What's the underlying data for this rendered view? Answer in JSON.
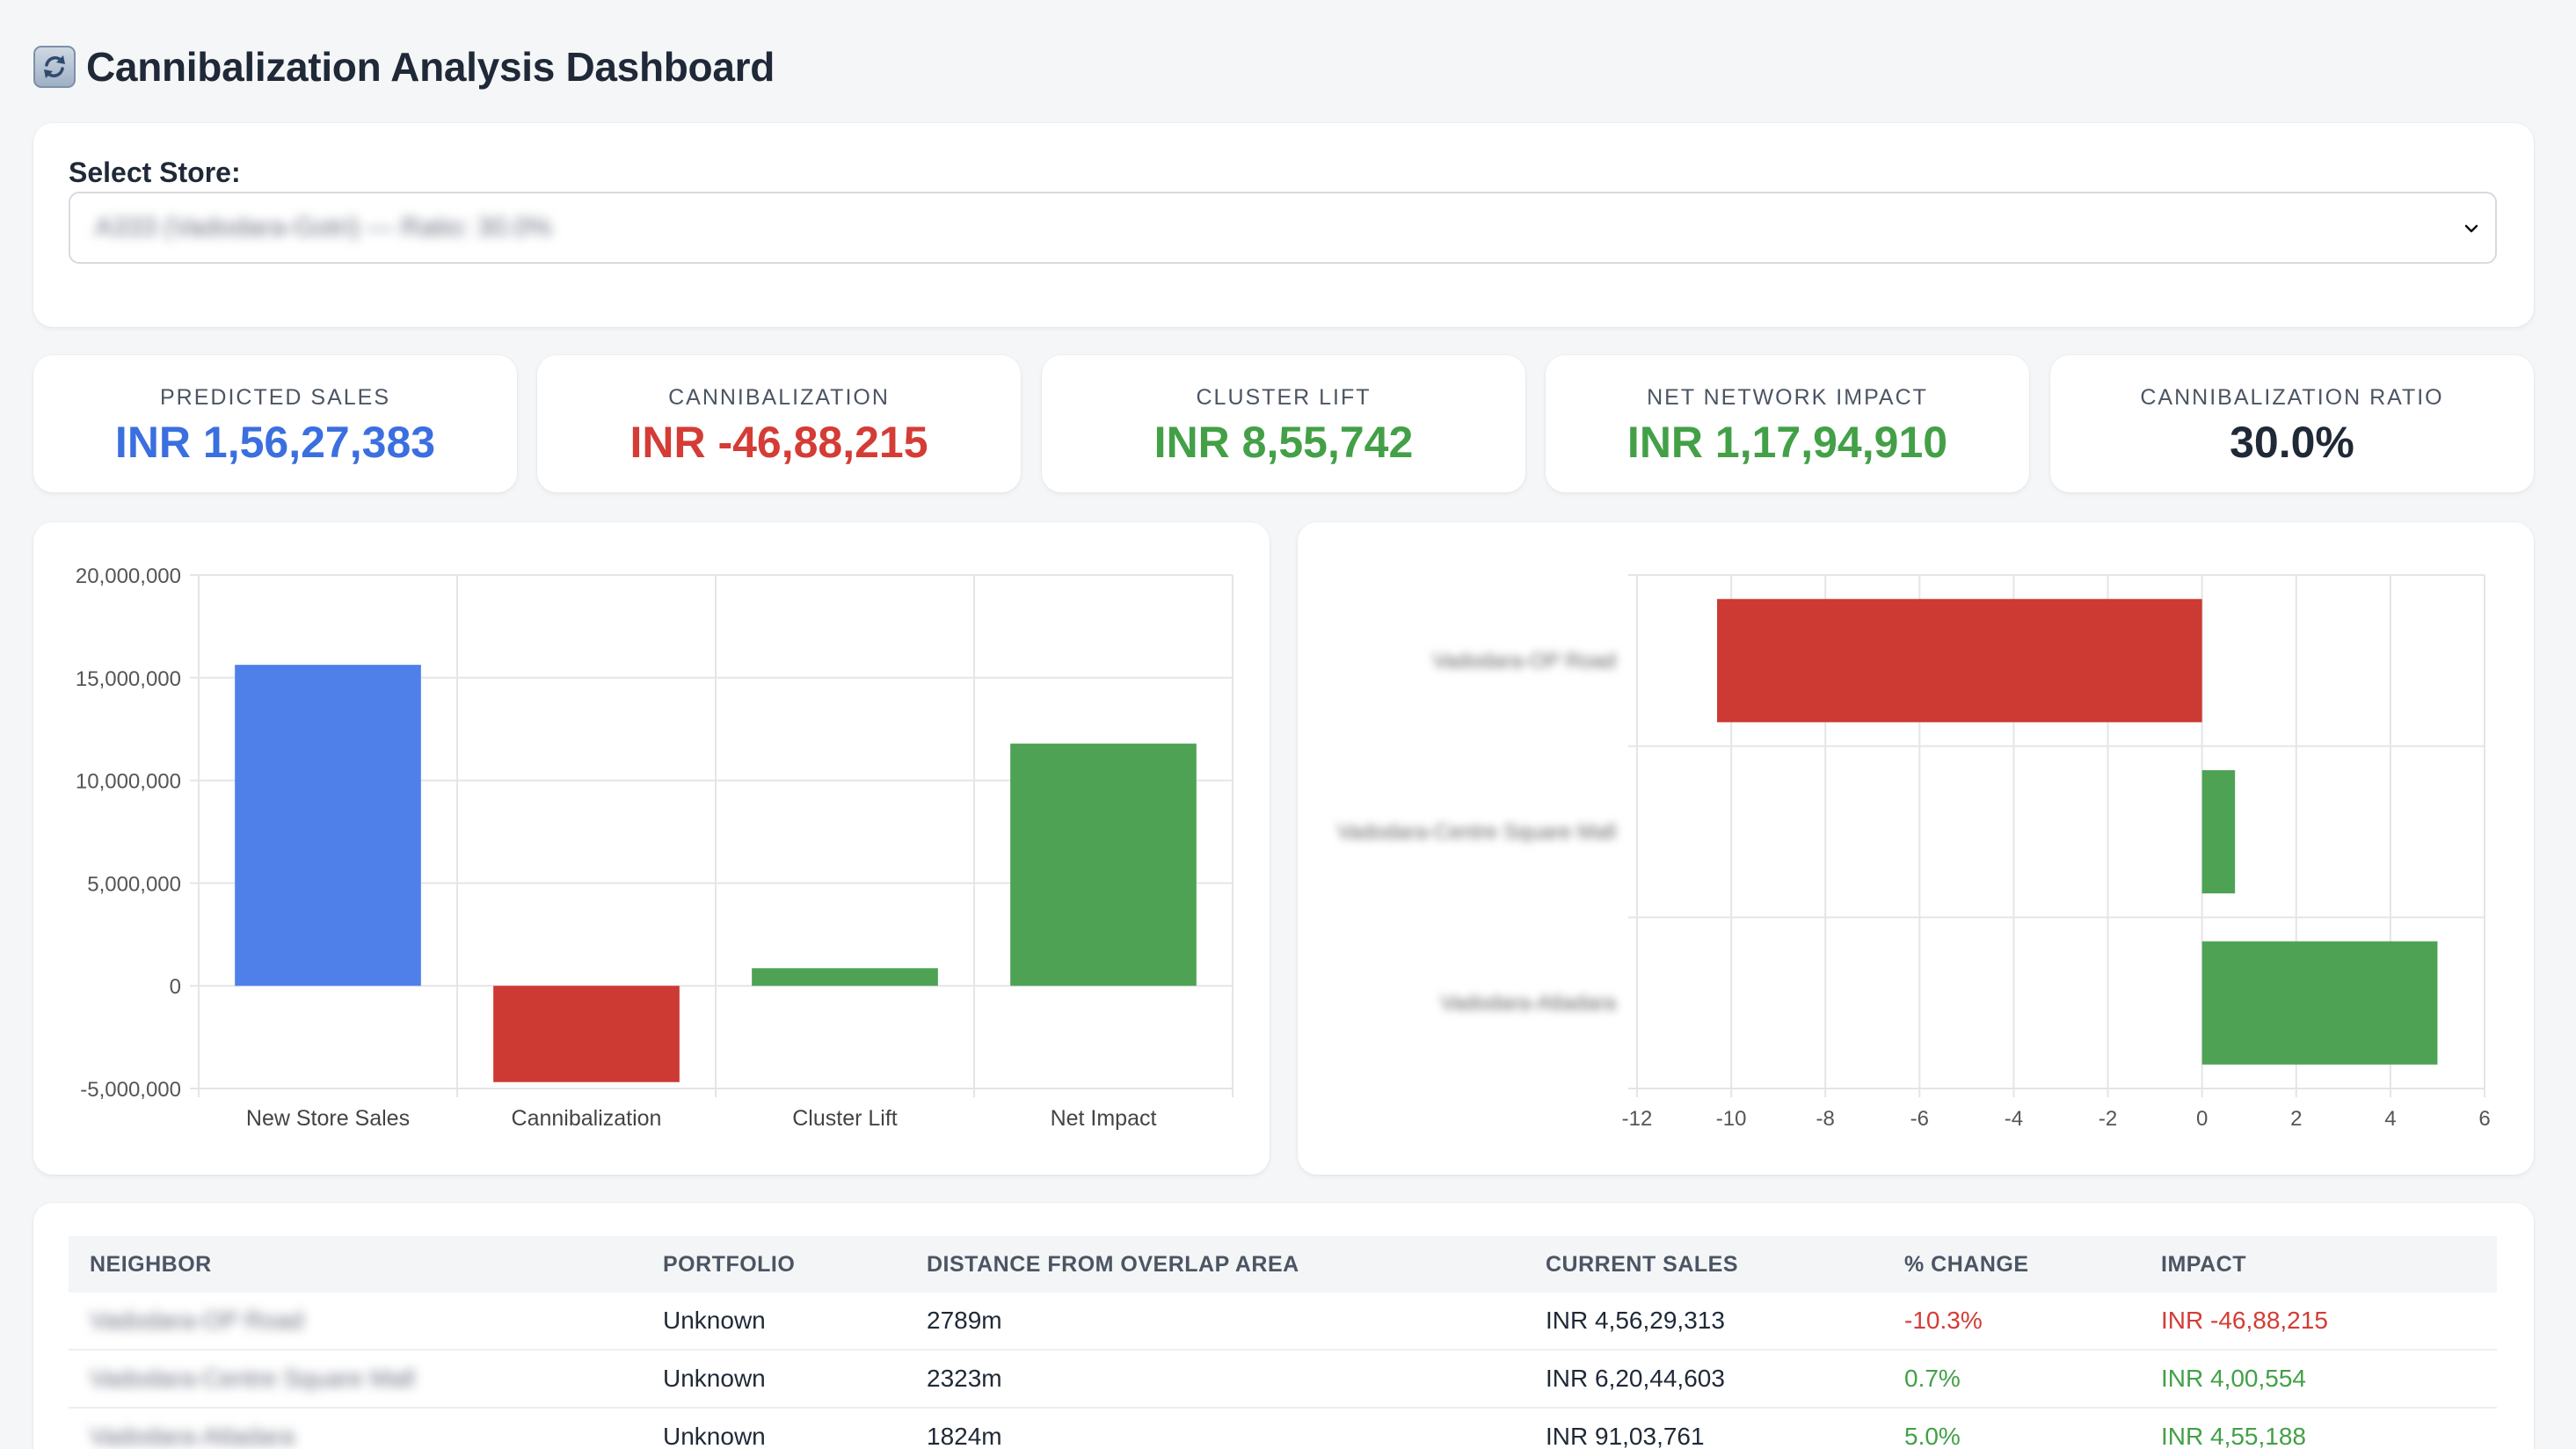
{
  "page": {
    "title": "Cannibalization Analysis Dashboard",
    "title_icon": "refresh-icon"
  },
  "store_selector": {
    "label": "Select Store:",
    "selected": "A333 (Vadodara-Gotri) — Ratio: 30.0%"
  },
  "kpis": [
    {
      "label": "PREDICTED SALES",
      "value": "INR 1,56,27,383",
      "color": "#3b6fe0"
    },
    {
      "label": "CANNIBALIZATION",
      "value": "INR -46,88,215",
      "color": "#d43c35"
    },
    {
      "label": "CLUSTER LIFT",
      "value": "INR 8,55,742",
      "color": "#43a047"
    },
    {
      "label": "NET NETWORK IMPACT",
      "value": "INR 1,17,94,910",
      "color": "#43a047"
    },
    {
      "label": "CANNIBALIZATION RATIO",
      "value": "30.0%",
      "color": "#1f2937"
    }
  ],
  "chart_data": [
    {
      "type": "bar",
      "categories": [
        "New Store Sales",
        "Cannibalization",
        "Cluster Lift",
        "Net Impact"
      ],
      "values": [
        15627383,
        -4688215,
        855742,
        11794910
      ],
      "colors": [
        "#4f80ea",
        "#cc3a33",
        "#4ea254",
        "#4ea254"
      ],
      "ylim": [
        -5000000,
        20000000
      ],
      "yticks": [
        -5000000,
        0,
        5000000,
        10000000,
        15000000,
        20000000
      ],
      "ytick_labels": [
        "-5,000,000",
        "0",
        "5,000,000",
        "10,000,000",
        "15,000,000",
        "20,000,000"
      ],
      "grid": true
    },
    {
      "type": "bar",
      "orientation": "horizontal",
      "categories": [
        "Vadodara-OP Road",
        "Vadodara-Centre Square Mall",
        "Vadodara-Atladara"
      ],
      "values": [
        -10.3,
        0.7,
        5.0
      ],
      "colors": [
        "#cc3a33",
        "#4ea254",
        "#4ea254"
      ],
      "xlim": [
        -12,
        6
      ],
      "xticks": [
        -12,
        -10,
        -8,
        -6,
        -4,
        -2,
        0,
        2,
        4,
        6
      ],
      "xtick_labels": [
        "-12",
        "-10",
        "-8",
        "-6",
        "-4",
        "-2",
        "0",
        "2",
        "4",
        "6"
      ],
      "grid": true
    }
  ],
  "table": {
    "headers": [
      "NEIGHBOR",
      "PORTFOLIO",
      "DISTANCE FROM OVERLAP AREA",
      "CURRENT SALES",
      "% CHANGE",
      "IMPACT"
    ],
    "rows": [
      {
        "neighbor": "Vadodara-OP Road",
        "portfolio": "Unknown",
        "distance": "2789m",
        "current_sales": "INR 4,56,29,313",
        "change": "-10.3%",
        "impact": "INR -46,88,215",
        "sign": "neg"
      },
      {
        "neighbor": "Vadodara-Centre Square Mall",
        "portfolio": "Unknown",
        "distance": "2323m",
        "current_sales": "INR 6,20,44,603",
        "change": "0.7%",
        "impact": "INR 4,00,554",
        "sign": "pos"
      },
      {
        "neighbor": "Vadodara-Atladara",
        "portfolio": "Unknown",
        "distance": "1824m",
        "current_sales": "INR 91,03,761",
        "change": "5.0%",
        "impact": "INR 4,55,188",
        "sign": "pos"
      }
    ]
  }
}
